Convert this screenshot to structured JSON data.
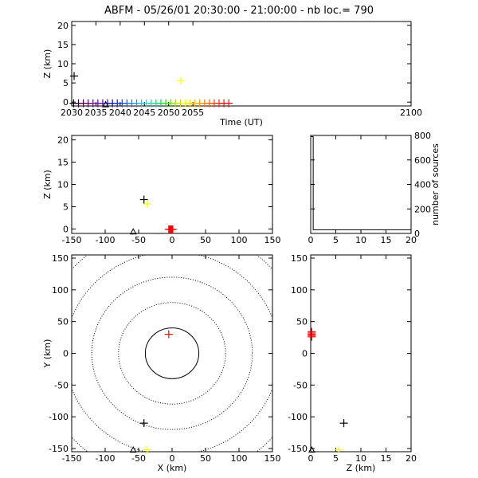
{
  "title": "ABFM - 05/26/01 20:30:00 - 21:00:00 - nb loc.=     790",
  "colors": {
    "axis": "#000000",
    "black": "#000000",
    "yellow": "#ffff00",
    "red": "#ff0000"
  },
  "chart_data": [
    {
      "id": "time-height",
      "type": "scatter",
      "xlabel": "Time (UT)",
      "ylabel": "Z (km)",
      "xlim": [
        2030,
        2100
      ],
      "ylim": [
        -1,
        21
      ],
      "xticks": [
        2030,
        2035,
        2040,
        2045,
        2050,
        2055,
        2100
      ],
      "yticks": [
        0,
        5,
        10,
        15,
        20
      ],
      "points": [
        {
          "x": 2030.5,
          "y": 6.8,
          "color": "#000000"
        },
        {
          "x": 2052.5,
          "y": 5.6,
          "color": "#ffff00"
        }
      ],
      "station": {
        "x": 2037,
        "y": -0.6
      },
      "color_bar": {
        "x_start": 2030.4,
        "x_step": 1.0,
        "y": -0.3,
        "colors": [
          "#000000",
          "#200020",
          "#400040",
          "#550060",
          "#6a0080",
          "#7000a0",
          "#5000b0",
          "#3000c0",
          "#1000d0",
          "#0020e0",
          "#0040ff",
          "#0060ff",
          "#0080ff",
          "#00a0ff",
          "#00c0ff",
          "#00e0e0",
          "#00e0b0",
          "#00e080",
          "#00e040",
          "#20e000",
          "#60e000",
          "#a0e000",
          "#d0e000",
          "#ffff00",
          "#ffe000",
          "#ffc000",
          "#ffa000",
          "#ff8000",
          "#ff6000",
          "#ff4000",
          "#ff2000",
          "#ff0000",
          "#ff0000"
        ]
      }
    },
    {
      "id": "xz",
      "type": "scatter",
      "ylabel": "Z (km)",
      "xlim": [
        -150,
        150
      ],
      "ylim": [
        -1,
        21
      ],
      "xticks": [
        -150,
        -100,
        -50,
        0,
        50,
        100,
        150
      ],
      "yticks": [
        0,
        5,
        10,
        15,
        20
      ],
      "points": [
        {
          "x": -42,
          "y": 6.6,
          "color": "#000000"
        },
        {
          "x": -37,
          "y": 5.6,
          "color": "#ffff00"
        }
      ],
      "red_points": [
        -5,
        -4,
        -3,
        -2,
        -1,
        0,
        1
      ],
      "red_y": -0.1,
      "station": {
        "x": -58,
        "y": -0.6
      }
    },
    {
      "id": "height-histogram",
      "type": "bar",
      "ylabel": "number of sources",
      "xlim": [
        0,
        20
      ],
      "ylim": [
        0,
        800
      ],
      "xticks": [
        0,
        5,
        10,
        15,
        20
      ],
      "yticks": [
        0,
        200,
        400,
        600,
        800
      ],
      "bars": [
        {
          "x0": 0,
          "x1": 0.5,
          "value": 790
        }
      ],
      "baseline": 30
    },
    {
      "id": "plan-view",
      "type": "scatter",
      "xlabel": "X (km)",
      "ylabel": "Y (km)",
      "xlim": [
        -150,
        150
      ],
      "ylim": [
        -155,
        155
      ],
      "xticks": [
        -150,
        -100,
        -50,
        0,
        50,
        100,
        150
      ],
      "yticks": [
        -150,
        -100,
        -50,
        0,
        50,
        100,
        150
      ],
      "range_rings_km": [
        40,
        80,
        120,
        160,
        200
      ],
      "points": [
        {
          "x": -5,
          "y": 30,
          "color": "#ff0000"
        },
        {
          "x": -42,
          "y": -110,
          "color": "#000000"
        },
        {
          "x": -37,
          "y": -152,
          "color": "#ffff00"
        }
      ],
      "station": {
        "x": -58,
        "y": -152
      }
    },
    {
      "id": "yz",
      "type": "scatter",
      "xlabel": "Z (km)",
      "xlim": [
        0,
        20
      ],
      "ylim": [
        -155,
        155
      ],
      "xticks": [
        0,
        5,
        10,
        15,
        20
      ],
      "yticks": [
        -150,
        -100,
        -50,
        0,
        50,
        100,
        150
      ],
      "points": [
        {
          "x": 6.6,
          "y": -110,
          "color": "#000000"
        },
        {
          "x": 5.6,
          "y": -152,
          "color": "#ffff00"
        }
      ],
      "red_points_y": [
        26,
        28,
        30,
        32,
        34
      ],
      "red_x": 0.2,
      "station": {
        "x": 0.2,
        "y": -152
      }
    }
  ]
}
